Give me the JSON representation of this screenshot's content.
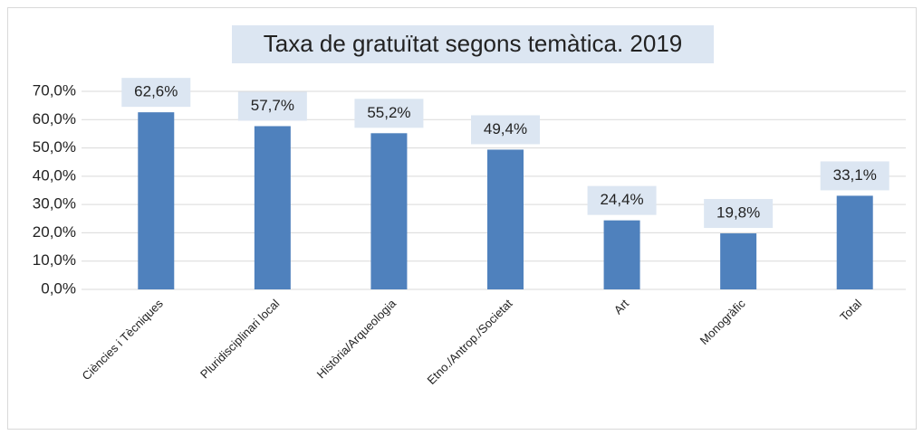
{
  "chart_data": {
    "type": "bar",
    "title": "Taxa de gratuïtat segons temàtica. 2019",
    "categories": [
      "Ciències i Tècniques",
      "Pluridisciplinari local",
      "Història/Arqueologia",
      "Etno./Antrop./Societat",
      "Art",
      "Monogràfic",
      "Total"
    ],
    "values": [
      62.6,
      57.7,
      55.2,
      49.4,
      24.4,
      19.8,
      33.1
    ],
    "value_labels": [
      "62,6%",
      "57,7%",
      "55,2%",
      "49,4%",
      "24,4%",
      "19,8%",
      "33,1%"
    ],
    "color": "#4f81bd",
    "ylim": [
      0,
      70
    ],
    "yticks": [
      {
        "value": 0,
        "label": "0,0%"
      },
      {
        "value": 10,
        "label": "10,0%"
      },
      {
        "value": 20,
        "label": "20,0%"
      },
      {
        "value": 30,
        "label": "30,0%"
      },
      {
        "value": 40,
        "label": "40,0%"
      },
      {
        "value": 50,
        "label": "50,0%"
      },
      {
        "value": 60,
        "label": "60,0%"
      },
      {
        "value": 70,
        "label": "70,0%"
      }
    ],
    "grid": true
  }
}
